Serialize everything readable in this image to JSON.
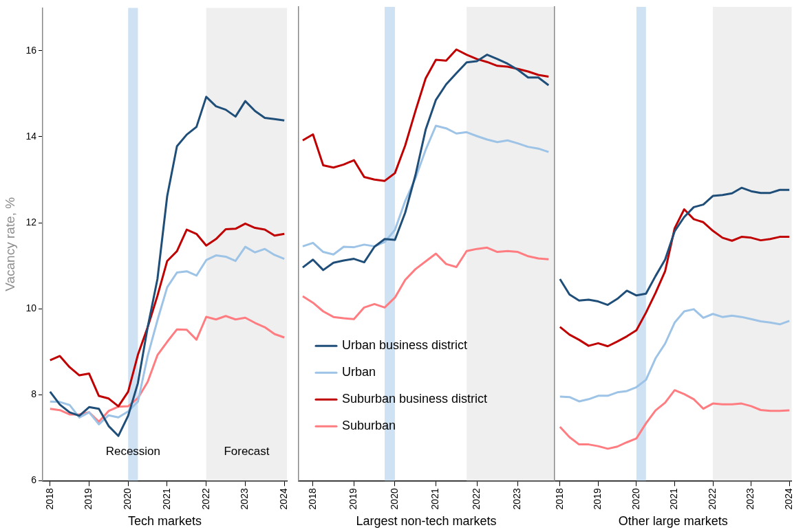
{
  "chart_data": [
    {
      "type": "line",
      "xlabel": "Tech markets",
      "ylabel": "Vacancy rate, %",
      "xlim": [
        2017.81,
        2024.07
      ],
      "xticks": [
        2018,
        2019,
        2020,
        2021,
        2022,
        2023,
        2024
      ],
      "ylim": [
        6,
        17
      ],
      "yticks": [
        6,
        8,
        10,
        12,
        14,
        16
      ],
      "x": [
        2018,
        2018.25,
        2018.5,
        2018.75,
        2019,
        2019.25,
        2019.5,
        2019.75,
        2020,
        2020.25,
        2020.5,
        2020.75,
        2021,
        2021.25,
        2021.5,
        2021.75,
        2022,
        2022.25,
        2022.5,
        2022.75,
        2023,
        2023.25,
        2023.5,
        2023.75,
        2024
      ],
      "bands": [
        {
          "axis": "x",
          "from": 2020,
          "to": 2020.25,
          "label": "Recession",
          "color": "#cfe2f3"
        },
        {
          "axis": "x",
          "from": 2022,
          "to": 2024.07,
          "label": "Forecast",
          "color": "#efefef"
        }
      ],
      "series": [
        {
          "color": "#1f4e79",
          "values": [
            8.07,
            7.77,
            7.59,
            7.51,
            7.71,
            7.67,
            7.27,
            7.04,
            7.51,
            8.27,
            9.57,
            10.69,
            12.62,
            13.78,
            14.05,
            14.23,
            14.93,
            14.71,
            14.63,
            14.47,
            14.83,
            14.6,
            14.44,
            14.41,
            14.38
          ]
        },
        {
          "color": "#9dc3e6",
          "values": [
            7.84,
            7.83,
            7.76,
            7.47,
            7.59,
            7.31,
            7.52,
            7.47,
            7.61,
            7.84,
            8.9,
            9.73,
            10.5,
            10.84,
            10.87,
            10.77,
            11.13,
            11.24,
            11.21,
            11.11,
            11.44,
            11.31,
            11.39,
            11.25,
            11.16
          ]
        },
        {
          "color": "#c00000",
          "values": [
            8.8,
            8.9,
            8.64,
            8.45,
            8.49,
            7.97,
            7.91,
            7.73,
            8.07,
            8.93,
            9.57,
            10.3,
            11.11,
            11.34,
            11.84,
            11.74,
            11.47,
            11.62,
            11.85,
            11.86,
            11.98,
            11.88,
            11.84,
            11.7,
            11.74
          ]
        },
        {
          "color": "#ff7c80",
          "values": [
            7.67,
            7.64,
            7.54,
            7.54,
            7.59,
            7.37,
            7.62,
            7.72,
            7.73,
            7.92,
            8.3,
            8.92,
            9.23,
            9.52,
            9.51,
            9.28,
            9.81,
            9.75,
            9.83,
            9.75,
            9.79,
            9.67,
            9.57,
            9.41,
            9.33
          ]
        }
      ]
    },
    {
      "type": "line",
      "xlabel": "Largest non-tech markets",
      "xlim": [
        2017.65,
        2023.88
      ],
      "xticks": [
        2018,
        2019,
        2020,
        2021,
        2022,
        2023
      ],
      "ylim": [
        6,
        17
      ],
      "yticks": [
        6,
        8,
        10,
        12,
        14,
        16
      ],
      "tick_labels": "x",
      "legend": "bottom left",
      "x": [
        2017.75,
        2018,
        2018.25,
        2018.5,
        2018.75,
        2019,
        2019.25,
        2019.5,
        2019.75,
        2020,
        2020.25,
        2020.5,
        2020.75,
        2021,
        2021.25,
        2021.5,
        2021.75,
        2022,
        2022.25,
        2022.5,
        2022.75,
        2023,
        2023.25,
        2023.5,
        2023.75
      ],
      "bands": [
        {
          "axis": "x",
          "from": 2019.75,
          "to": 2020,
          "color": "#cfe2f3"
        },
        {
          "axis": "x",
          "from": 2021.75,
          "to": 2023.88,
          "color": "#efefef"
        }
      ],
      "series": [
        {
          "name": "Urban business district",
          "color": "#1f4e79",
          "values": [
            10.95,
            11.13,
            10.89,
            11.06,
            11.11,
            11.15,
            11.07,
            11.43,
            11.61,
            11.59,
            12.22,
            13.09,
            14.15,
            14.84,
            15.2,
            15.46,
            15.71,
            15.74,
            15.89,
            15.79,
            15.68,
            15.54,
            15.36,
            15.36,
            15.18
          ]
        },
        {
          "name": "Urban",
          "color": "#9dc3e6",
          "values": [
            11.44,
            11.52,
            11.31,
            11.25,
            11.43,
            11.42,
            11.48,
            11.44,
            11.54,
            11.82,
            12.49,
            13.02,
            13.68,
            14.24,
            14.18,
            14.06,
            14.09,
            14,
            13.92,
            13.86,
            13.9,
            13.83,
            13.75,
            13.71,
            13.63
          ]
        },
        {
          "name": "Suburban business district",
          "color": "#c00000",
          "values": [
            13.9,
            14.04,
            13.32,
            13.27,
            13.34,
            13.44,
            13.05,
            12.99,
            12.96,
            13.14,
            13.78,
            14.58,
            15.34,
            15.77,
            15.75,
            16.01,
            15.89,
            15.79,
            15.72,
            15.63,
            15.61,
            15.56,
            15.5,
            15.42,
            15.38
          ]
        },
        {
          "name": "Suburban",
          "color": "#ff7c80",
          "values": [
            10.28,
            10.13,
            9.93,
            9.8,
            9.77,
            9.75,
            10.02,
            10.1,
            10.02,
            10.25,
            10.66,
            10.91,
            11.09,
            11.27,
            11.03,
            10.96,
            11.33,
            11.38,
            11.41,
            11.31,
            11.33,
            11.31,
            11.21,
            11.16,
            11.14
          ]
        }
      ]
    },
    {
      "type": "line",
      "xlabel": "Other large markets",
      "xlim": [
        2017.86,
        2024.06
      ],
      "xticks": [
        2018,
        2019,
        2020,
        2021,
        2022,
        2023,
        2024
      ],
      "ylim": [
        6,
        17
      ],
      "yticks": [
        6,
        8,
        10,
        12,
        14,
        16
      ],
      "tick_labels": "x",
      "x": [
        2018,
        2018.25,
        2018.5,
        2018.75,
        2019,
        2019.25,
        2019.5,
        2019.75,
        2020,
        2020.25,
        2020.5,
        2020.75,
        2021,
        2021.25,
        2021.5,
        2021.75,
        2022,
        2022.25,
        2022.5,
        2022.75,
        2023,
        2023.25,
        2023.5,
        2023.75,
        2024
      ],
      "bands": [
        {
          "axis": "x",
          "from": 2020,
          "to": 2020.25,
          "color": "#cfe2f3"
        },
        {
          "axis": "x",
          "from": 2022,
          "to": 2024.06,
          "color": "#efefef"
        }
      ],
      "series": [
        {
          "color": "#1f4e79",
          "values": [
            10.68,
            10.32,
            10.18,
            10.2,
            10.16,
            10.08,
            10.22,
            10.41,
            10.3,
            10.34,
            10.75,
            11.13,
            11.79,
            12.12,
            12.35,
            12.41,
            12.61,
            12.63,
            12.67,
            12.8,
            12.72,
            12.68,
            12.68,
            12.75,
            12.75
          ]
        },
        {
          "color": "#9dc3e6",
          "values": [
            7.95,
            7.94,
            7.84,
            7.89,
            7.97,
            7.97,
            8.05,
            8.08,
            8.17,
            8.34,
            8.84,
            9.18,
            9.67,
            9.93,
            9.98,
            9.78,
            9.87,
            9.8,
            9.83,
            9.8,
            9.75,
            9.7,
            9.67,
            9.63,
            9.71
          ]
        },
        {
          "color": "#c00000",
          "values": [
            9.57,
            9.39,
            9.27,
            9.13,
            9.19,
            9.12,
            9.23,
            9.35,
            9.49,
            9.9,
            10.36,
            10.86,
            11.86,
            12.3,
            12.07,
            12,
            11.8,
            11.64,
            11.57,
            11.66,
            11.64,
            11.58,
            11.61,
            11.66,
            11.66
          ]
        },
        {
          "color": "#ff7c80",
          "values": [
            7.25,
            7.01,
            6.84,
            6.84,
            6.8,
            6.74,
            6.79,
            6.89,
            6.98,
            7.33,
            7.63,
            7.81,
            8.1,
            8.01,
            7.89,
            7.67,
            7.79,
            7.77,
            7.77,
            7.79,
            7.73,
            7.64,
            7.62,
            7.62,
            7.63
          ]
        }
      ]
    }
  ]
}
